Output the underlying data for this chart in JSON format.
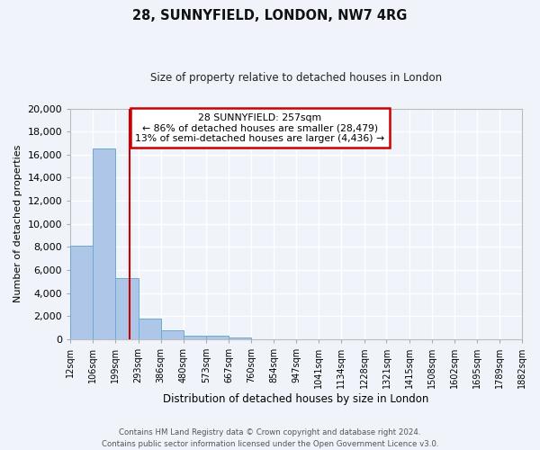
{
  "title1": "28, SUNNYFIELD, LONDON, NW7 4RG",
  "title2": "Size of property relative to detached houses in London",
  "xlabel": "Distribution of detached houses by size in London",
  "ylabel": "Number of detached properties",
  "bin_edges": [
    12,
    106,
    199,
    293,
    386,
    480,
    573,
    667,
    760,
    854,
    947,
    1041,
    1134,
    1228,
    1321,
    1415,
    1508,
    1602,
    1695,
    1789,
    1882
  ],
  "bin_labels": [
    "12sqm",
    "106sqm",
    "199sqm",
    "293sqm",
    "386sqm",
    "480sqm",
    "573sqm",
    "667sqm",
    "760sqm",
    "854sqm",
    "947sqm",
    "1041sqm",
    "1134sqm",
    "1228sqm",
    "1321sqm",
    "1415sqm",
    "1508sqm",
    "1602sqm",
    "1695sqm",
    "1789sqm",
    "1882sqm"
  ],
  "bar_heights": [
    8100,
    16500,
    5300,
    1800,
    750,
    300,
    300,
    150,
    0,
    0,
    0,
    0,
    0,
    0,
    0,
    0,
    0,
    0,
    0,
    0
  ],
  "bar_color": "#aec6e8",
  "bar_edge_color": "#6aaad4",
  "property_size": 257,
  "vline_color": "#cc0000",
  "ylim": [
    0,
    20000
  ],
  "yticks": [
    0,
    2000,
    4000,
    6000,
    8000,
    10000,
    12000,
    14000,
    16000,
    18000,
    20000
  ],
  "annotation_title": "28 SUNNYFIELD: 257sqm",
  "annotation_line1": "← 86% of detached houses are smaller (28,479)",
  "annotation_line2": "13% of semi-detached houses are larger (4,436) →",
  "annotation_box_color": "#ffffff",
  "annotation_box_edge": "#cc0000",
  "footer1": "Contains HM Land Registry data © Crown copyright and database right 2024.",
  "footer2": "Contains public sector information licensed under the Open Government Licence v3.0.",
  "background_color": "#f0f4fa",
  "plot_bg_color": "#f0f4fa",
  "grid_color": "#ffffff"
}
